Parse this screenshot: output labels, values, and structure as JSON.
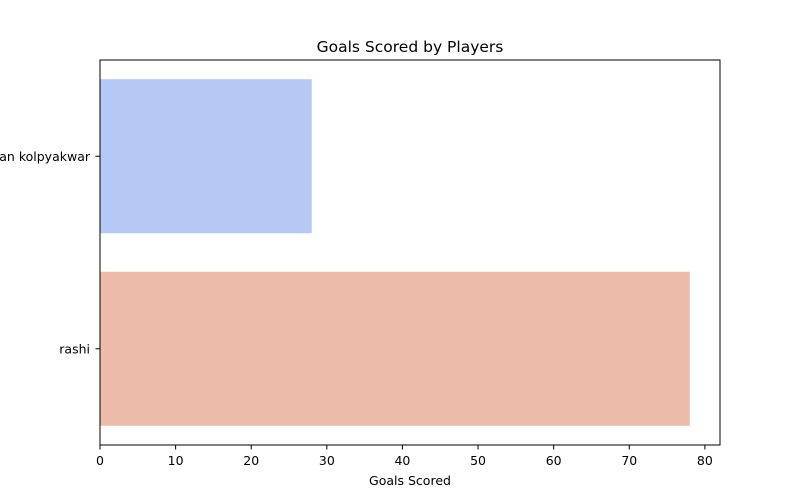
{
  "chart_data": {
    "type": "bar",
    "orientation": "horizontal",
    "title": "Goals Scored by Players",
    "xlabel": "Goals Scored",
    "ylabel": "",
    "categories": [
      "Aryan kolpyakwar",
      "rashi"
    ],
    "values": [
      28,
      78
    ],
    "colors": [
      "#b5c9f4",
      "#ecbca8"
    ],
    "xlim": [
      0,
      82
    ],
    "xticks": [
      0,
      10,
      20,
      30,
      40,
      50,
      60,
      70,
      80
    ],
    "grid": false,
    "legend": "none"
  }
}
